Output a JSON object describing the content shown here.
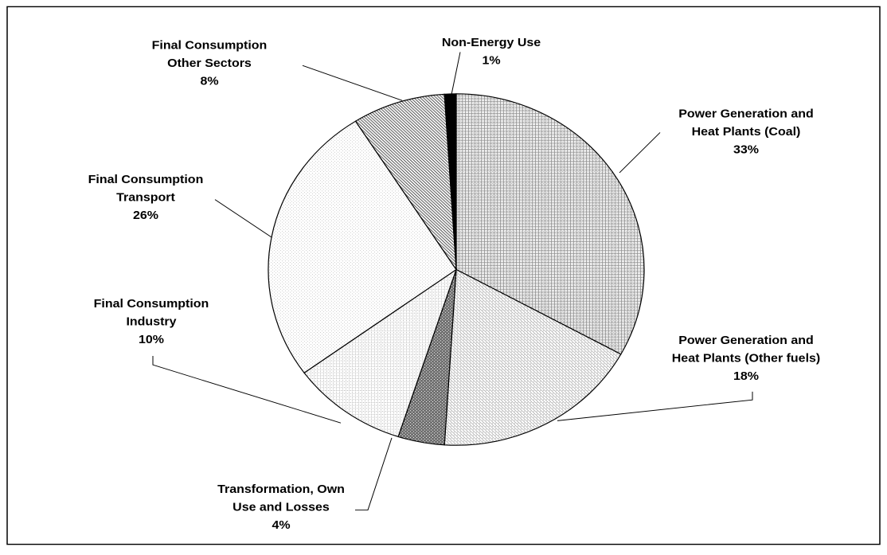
{
  "chart_data": {
    "type": "pie",
    "categories": [
      "Power Generation and\nHeat Plants (Coal)",
      "Power Generation and\nHeat Plants (Other fuels)",
      "Transformation, Own\nUse and Losses",
      "Final Consumption\nIndustry",
      "Final Consumption\nTransport",
      "Final Consumption\nOther Sectors",
      "Non-Energy Use"
    ],
    "values": [
      33,
      18,
      4,
      10,
      26,
      8,
      1
    ],
    "value_labels": [
      "33%",
      "18%",
      "4%",
      "10%",
      "26%",
      "8%",
      "1%"
    ],
    "colors": [
      "#9a9a9a",
      "#a8a8a8",
      "#707070",
      "#b4b4b4",
      "#c8c8c8",
      "#808080",
      "#000000"
    ]
  }
}
